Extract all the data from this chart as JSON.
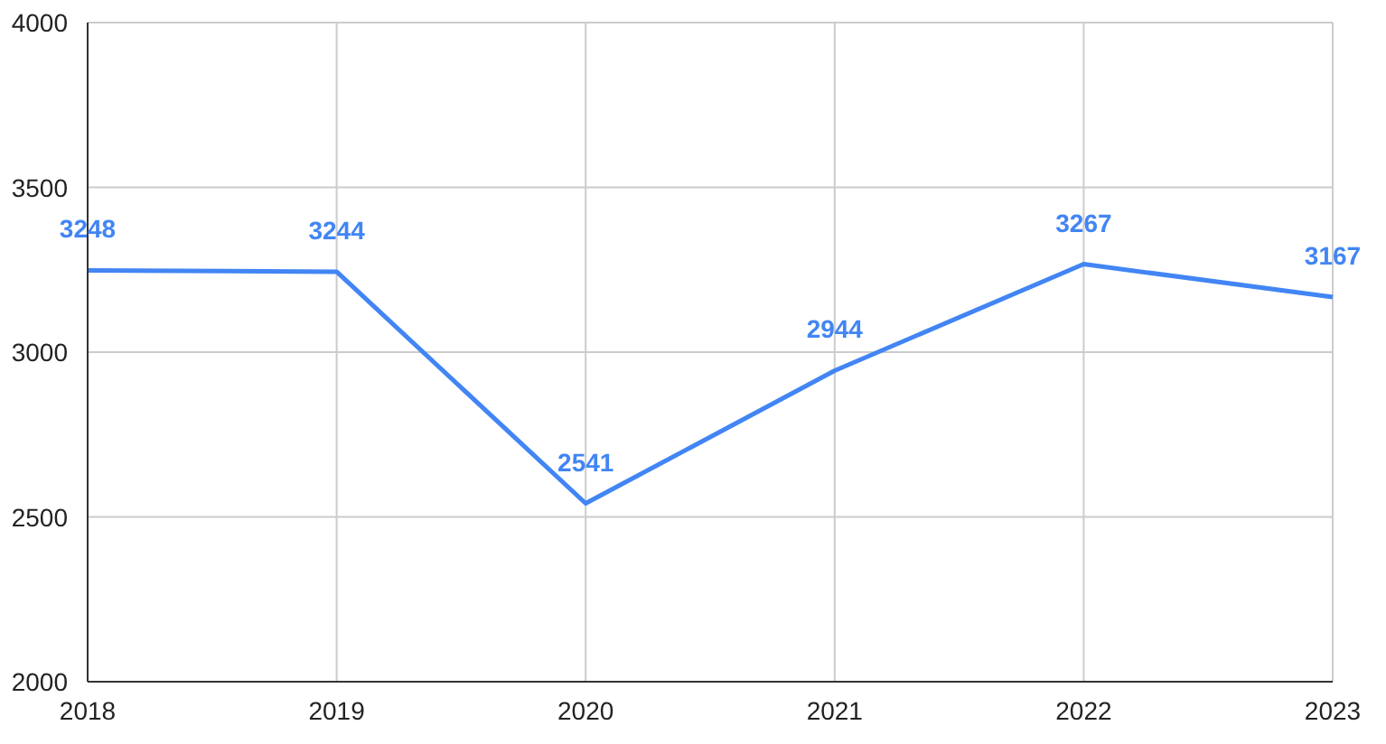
{
  "chart_data": {
    "type": "line",
    "x": [
      2018,
      2019,
      2020,
      2021,
      2022,
      2023
    ],
    "series": [
      {
        "color": "#4285f4",
        "values": [
          3248,
          3244,
          2541,
          2944,
          3267,
          3167
        ]
      }
    ],
    "xlim": [
      2018,
      2023
    ],
    "xticks": [
      2018,
      2019,
      2020,
      2021,
      2022,
      2023
    ],
    "ylim": [
      2000,
      4000
    ],
    "yticks": [
      2000,
      2500,
      3000,
      3500,
      4000
    ],
    "grid": true,
    "data_labels": true,
    "marker": "none",
    "line_style": "solid"
  }
}
